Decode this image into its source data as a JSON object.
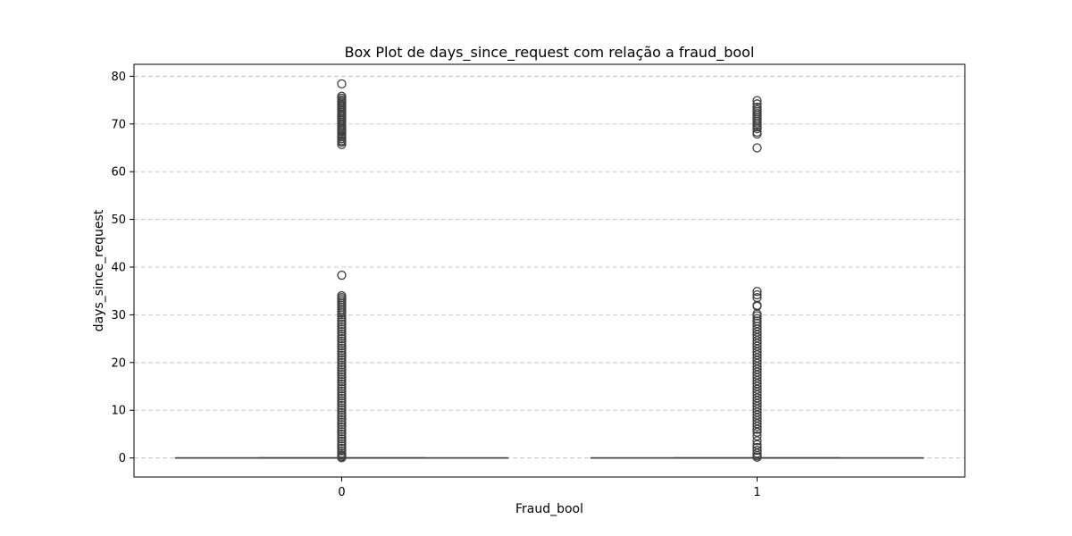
{
  "chart_data": {
    "type": "box",
    "title": "Box Plot de days_since_request com relação a fraud_bool",
    "xlabel": "Fraud_bool",
    "ylabel": "days_since_request",
    "categories": [
      "0",
      "1"
    ],
    "ylim": [
      -4,
      82.5
    ],
    "yticks": [
      0,
      10,
      20,
      30,
      40,
      50,
      60,
      70,
      80
    ],
    "grid": {
      "y": true,
      "style": "dashed"
    },
    "boxes": [
      {
        "category": "0",
        "q1": 0,
        "median": 0,
        "q3": 0,
        "whisker_low": 0,
        "whisker_high": 0,
        "outliers": [
          78.4,
          75.8,
          75.4,
          75.0,
          74.7,
          74.4,
          74.0,
          73.7,
          73.4,
          73.0,
          72.7,
          72.4,
          72.0,
          71.7,
          71.4,
          71.0,
          70.7,
          70.4,
          70.0,
          69.7,
          69.4,
          69.0,
          68.7,
          68.4,
          68.0,
          67.6,
          67.3,
          66.9,
          66.5,
          66.2,
          65.7,
          38.3,
          34.0,
          33.6,
          33.2,
          32.8,
          32.4,
          32.0,
          31.6,
          31.2,
          30.8,
          30.4,
          30.0,
          29.5,
          29.0,
          28.5,
          28.0,
          27.5,
          27.0,
          26.5,
          26.0,
          25.5,
          25.0,
          24.5,
          24.0,
          23.5,
          23.0,
          22.5,
          22.0,
          21.5,
          21.0,
          20.5,
          20.0,
          19.5,
          19.0,
          18.5,
          18.0,
          17.5,
          17.0,
          16.5,
          16.0,
          15.5,
          15.0,
          14.5,
          14.0,
          13.5,
          13.0,
          12.5,
          12.0,
          11.5,
          11.0,
          10.5,
          10.0,
          9.5,
          9.0,
          8.5,
          8.0,
          7.5,
          7.0,
          6.5,
          6.0,
          5.5,
          5.0,
          4.5,
          4.0,
          3.5,
          3.0,
          2.5,
          2.0,
          1.5,
          1.0,
          0.6,
          0.3,
          0.05
        ]
      },
      {
        "category": "1",
        "q1": 0,
        "median": 0,
        "q3": 0,
        "whisker_low": 0,
        "whisker_high": 0,
        "outliers": [
          74.9,
          74.2,
          73.5,
          73.0,
          72.6,
          72.2,
          71.8,
          71.4,
          71.0,
          70.6,
          70.2,
          69.8,
          69.4,
          69.0,
          68.3,
          67.9,
          65.0,
          34.9,
          34.2,
          33.6,
          32.0,
          31.8,
          30.2,
          29.8,
          29.2,
          28.7,
          28.2,
          27.6,
          27.0,
          26.4,
          25.8,
          25.2,
          24.6,
          24.0,
          23.4,
          22.8,
          22.2,
          21.6,
          21.0,
          20.4,
          19.8,
          19.2,
          18.6,
          18.0,
          17.4,
          16.8,
          16.2,
          15.6,
          15.0,
          14.4,
          13.8,
          13.2,
          12.6,
          12.0,
          11.4,
          10.8,
          10.2,
          9.6,
          9.0,
          8.4,
          7.8,
          7.2,
          6.6,
          6.0,
          5.4,
          4.6,
          3.6,
          2.8,
          2.2,
          1.6,
          1.0,
          0.5,
          0.15
        ]
      }
    ]
  }
}
